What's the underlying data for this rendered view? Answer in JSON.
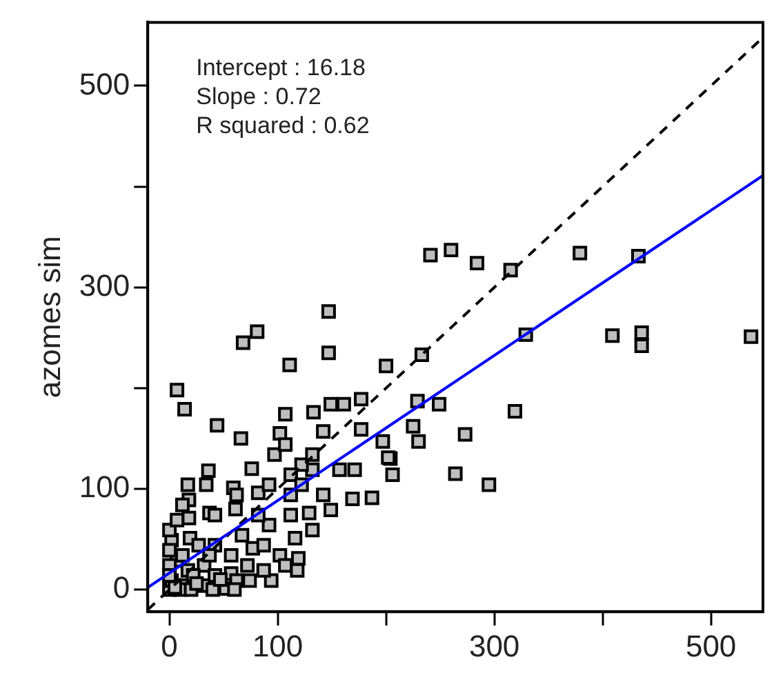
{
  "chart_data": {
    "type": "scatter",
    "ylabel": "azomes sim",
    "annotations": [
      "Intercept : 16.18",
      "Slope : 0.72",
      "R squared : 0.62"
    ],
    "xlim": [
      -20,
      548
    ],
    "ylim": [
      -22,
      563
    ],
    "xticks": [
      0,
      100,
      {
        "value": 200,
        "label": null
      },
      300,
      {
        "value": 400,
        "label": null
      },
      500
    ],
    "yticks": [
      0,
      100,
      {
        "value": 200,
        "label": null
      },
      300,
      {
        "value": 400,
        "label": null
      },
      500
    ],
    "grid": false,
    "legend": false,
    "marker": "square",
    "series": [
      {
        "color": "#bebebe",
        "x": [
          241,
          260,
          284,
          315,
          379,
          433,
          329,
          409,
          436,
          436,
          537,
          147,
          68,
          81,
          111,
          147,
          200,
          233,
          7,
          14,
          44,
          66,
          229,
          249,
          319,
          225,
          230,
          273,
          264,
          295,
          206,
          204,
          187,
          169,
          149,
          177,
          161,
          149,
          133,
          107,
          102,
          142,
          177,
          197,
          202,
          157,
          171,
          132,
          122,
          97,
          76,
          36,
          17,
          34,
          59,
          18,
          37,
          61,
          82,
          112,
          132,
          129,
          116,
          77,
          57,
          19,
          18,
          2,
          7,
          17,
          32,
          57,
          74,
          94,
          118,
          119,
          102,
          92,
          112,
          42,
          32,
          52,
          0,
          2,
          62,
          0,
          0,
          0,
          12,
          22,
          42,
          72,
          87,
          107,
          87,
          67,
          42,
          62,
          92,
          112,
          142,
          132,
          107,
          122,
          82,
          7,
          12,
          27,
          12,
          37,
          10,
          20,
          40,
          60,
          0,
          5,
          25,
          47
        ],
        "values": [
          332,
          337,
          324,
          317,
          334,
          331,
          253,
          252,
          255,
          242,
          251,
          276,
          245,
          256,
          223,
          235,
          222,
          233,
          198,
          179,
          163,
          150,
          187,
          184,
          177,
          162,
          147,
          154,
          115,
          104,
          114,
          130,
          91,
          90,
          79,
          189,
          184,
          184,
          176,
          174,
          155,
          157,
          159,
          147,
          131,
          119,
          119,
          119,
          124,
          134,
          120,
          118,
          104,
          104,
          101,
          89,
          76,
          80,
          96,
          94,
          59,
          76,
          51,
          41,
          34,
          51,
          71,
          49,
          29,
          19,
          24,
          16,
          9,
          9,
          19,
          31,
          34,
          64,
          74,
          44,
          4,
          1,
          0,
          9,
          9,
          24,
          59,
          39,
          4,
          14,
          14,
          24,
          19,
          24,
          44,
          54,
          74,
          94,
          104,
          114,
          94,
          134,
          144,
          104,
          74,
          69,
          84,
          44,
          34,
          34,
          0,
          0,
          0,
          0,
          14,
          2,
          6,
          10
        ]
      },
      {
        "type": "line",
        "color": "#0000ff",
        "marker": "none",
        "x": [
          -20,
          548
        ],
        "values": [
          2,
          411
        ]
      },
      {
        "type": "line",
        "color": "#000000",
        "marker": "none",
        "line_style": "dashed",
        "x": [
          -20,
          548
        ],
        "values": [
          -20,
          548
        ]
      }
    ]
  }
}
